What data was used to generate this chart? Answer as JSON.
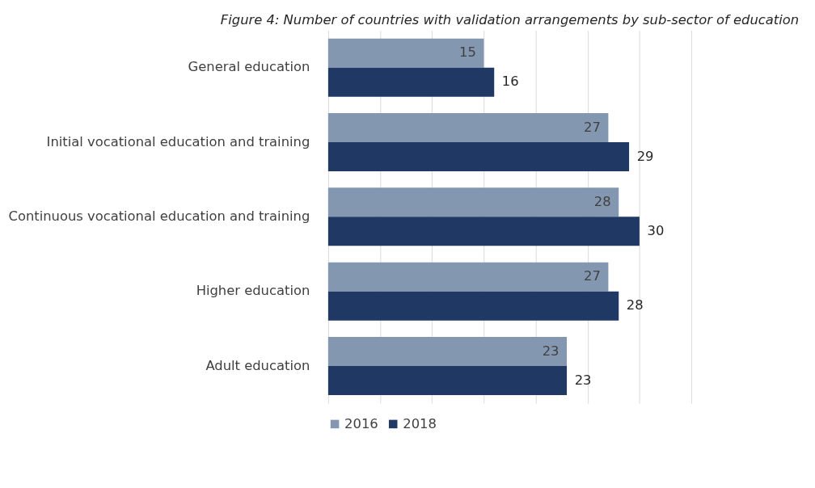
{
  "chart_data": {
    "type": "bar",
    "orientation": "horizontal",
    "title": "Figure 4: Number of countries with validation arrangements by sub-sector of education",
    "categories": [
      "General education",
      "Initial vocational education and training",
      "Continuous vocational education and training",
      "Higher education",
      "Adult education"
    ],
    "series": [
      {
        "name": "2016",
        "color": "#8497b0",
        "values": [
          15,
          27,
          28,
          27,
          23
        ]
      },
      {
        "name": "2018",
        "color": "#203864",
        "values": [
          16,
          29,
          30,
          28,
          23
        ]
      }
    ],
    "xlim": [
      0,
      35
    ],
    "xticks": [
      {
        "value": 0,
        "label": null
      },
      {
        "value": 5,
        "label": null
      },
      {
        "value": 10,
        "label": null
      },
      {
        "value": 15,
        "label": null
      },
      {
        "value": 20,
        "label": null
      },
      {
        "value": 25,
        "label": null
      },
      {
        "value": 30,
        "label": null
      },
      {
        "value": 35,
        "label": null
      }
    ],
    "grid": "x",
    "tick_labels": "y",
    "legend": "bottom",
    "data_labels": true
  }
}
